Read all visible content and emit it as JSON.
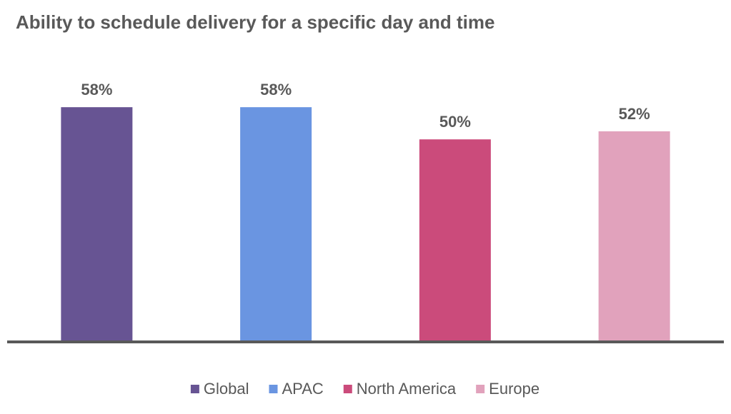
{
  "chart_data": {
    "type": "bar",
    "title": "Ability to schedule delivery for a specific day and time",
    "ylim": [
      0,
      74
    ],
    "series": [
      {
        "name": "Global",
        "color": "#675493",
        "values": [
          58
        ],
        "value_labels": [
          "58%"
        ]
      },
      {
        "name": "APAC",
        "color": "#6a95e1",
        "values": [
          58
        ],
        "value_labels": [
          "58%"
        ]
      },
      {
        "name": "North America",
        "color": "#cb4b7b",
        "values": [
          50
        ],
        "value_labels": [
          "50%"
        ]
      },
      {
        "name": "Europe",
        "color": "#e1a2bc",
        "values": [
          52
        ],
        "value_labels": [
          "52%"
        ]
      }
    ]
  }
}
